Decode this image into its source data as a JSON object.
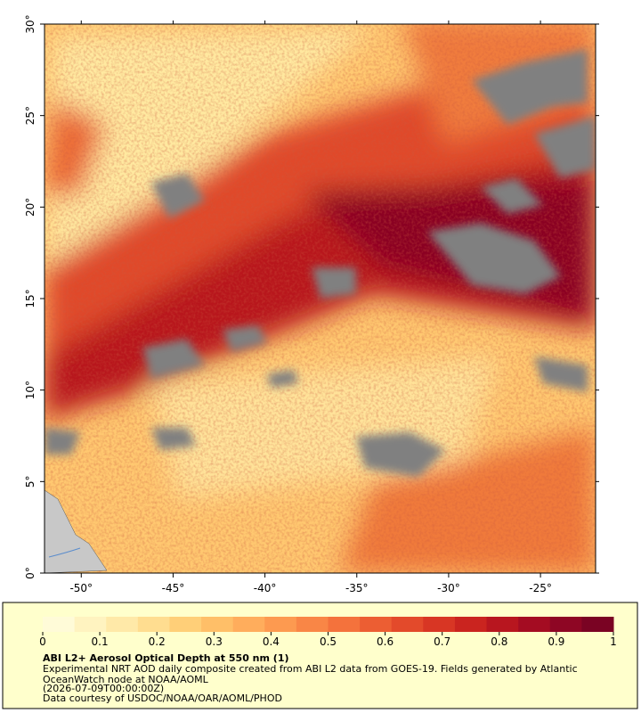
{
  "map": {
    "xlim": [
      -52,
      -22
    ],
    "ylim": [
      0,
      30
    ],
    "xticks": [
      {
        "value": -50,
        "label": "-50°"
      },
      {
        "value": -45,
        "label": "-45°"
      },
      {
        "value": -40,
        "label": "-40°"
      },
      {
        "value": -35,
        "label": "-35°"
      },
      {
        "value": -30,
        "label": "-30°"
      },
      {
        "value": -25,
        "label": "-25°"
      }
    ],
    "yticks": [
      {
        "value": 0,
        "label": "0°"
      },
      {
        "value": 5,
        "label": "5°"
      },
      {
        "value": 10,
        "label": "10°"
      },
      {
        "value": 15,
        "label": "15°"
      },
      {
        "value": 20,
        "label": "20°"
      },
      {
        "value": 25,
        "label": "25°"
      },
      {
        "value": 30,
        "label": "30°"
      }
    ]
  },
  "colorbar": {
    "range": [
      0,
      1
    ],
    "ticks": [
      0,
      0.1,
      0.2,
      0.3,
      0.4,
      0.5,
      0.6,
      0.7,
      0.8,
      0.9,
      1
    ],
    "colors": [
      "#fffbd8",
      "#fff3c0",
      "#ffe9a8",
      "#ffdd90",
      "#ffcf78",
      "#ffbf68",
      "#ffad5c",
      "#fd9a50",
      "#f98646",
      "#f4723c",
      "#ec5e33",
      "#e34a2b",
      "#d83624",
      "#ca241f",
      "#b8161f",
      "#a40c22",
      "#8e0624",
      "#7a0323"
    ]
  },
  "legend": {
    "title": "ABI L2+ Aerosol Optical Depth at 550 nm (1)",
    "lines": [
      "Experimental NRT AOD daily composite created from ABI L2 data from GOES-19. Fields generated by Atlantic",
      "OceanWatch node at NOAA/AOML",
      "(2026-07-09T00:00:00Z)",
      "Data courtesy of USDOC/NOAA/OAR/AOML/PHOD"
    ]
  }
}
